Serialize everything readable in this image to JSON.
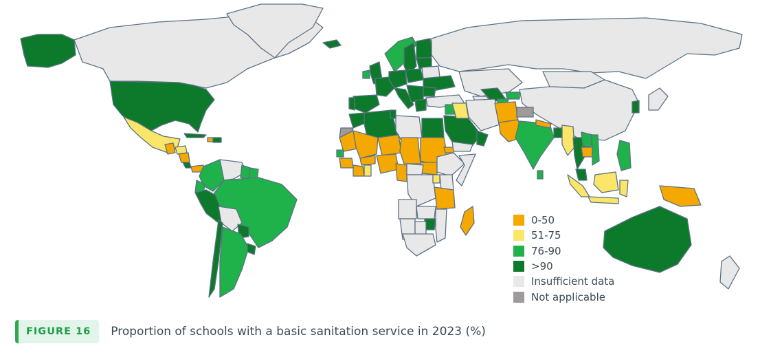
{
  "figure": {
    "label": "FIGURE 16",
    "title": "Proportion of schools with a basic sanitation service in 2023 (%)"
  },
  "legend": [
    {
      "label": "0-50",
      "color": "#f5a800"
    },
    {
      "label": "51-75",
      "color": "#fbe66a"
    },
    {
      "label": "76-90",
      "color": "#1fb14a"
    },
    {
      "label": ">90",
      "color": "#0d7a2b"
    },
    {
      "label": "Insufficient data",
      "color": "#e8e8e8"
    },
    {
      "label": "Not applicable",
      "color": "#a09a9a"
    }
  ],
  "colors": {
    "border": "#5b7184",
    "ocean": "#ffffff",
    "accent": "#2fa84f"
  },
  "regions": [
    {
      "name": "Canada",
      "category": "Insufficient data"
    },
    {
      "name": "Greenland",
      "category": "Insufficient data"
    },
    {
      "name": "Alaska",
      "category": ">90"
    },
    {
      "name": "United States",
      "category": ">90"
    },
    {
      "name": "Mexico",
      "category": "51-75"
    },
    {
      "name": "Guatemala",
      "category": "0-50"
    },
    {
      "name": "Honduras",
      "category": "51-75"
    },
    {
      "name": "Nicaragua",
      "category": "0-50"
    },
    {
      "name": "Costa Rica",
      "category": ">90"
    },
    {
      "name": "Panama",
      "category": "0-50"
    },
    {
      "name": "Cuba",
      "category": ">90"
    },
    {
      "name": "Haiti",
      "category": "0-50"
    },
    {
      "name": "Dominican Republic",
      "category": ">90"
    },
    {
      "name": "Colombia",
      "category": "76-90"
    },
    {
      "name": "Venezuela",
      "category": "Insufficient data"
    },
    {
      "name": "Guyana",
      "category": "76-90"
    },
    {
      "name": "Suriname",
      "category": "76-90"
    },
    {
      "name": "Ecuador",
      "category": "76-90"
    },
    {
      "name": "Peru",
      "category": ">90"
    },
    {
      "name": "Brazil",
      "category": "76-90"
    },
    {
      "name": "Bolivia",
      "category": "Insufficient data"
    },
    {
      "name": "Paraguay",
      "category": ">90"
    },
    {
      "name": "Chile",
      "category": ">90"
    },
    {
      "name": "Argentina",
      "category": "76-90"
    },
    {
      "name": "Uruguay",
      "category": ">90"
    },
    {
      "name": "Iceland",
      "category": ">90"
    },
    {
      "name": "Norway",
      "category": "76-90"
    },
    {
      "name": "Sweden",
      "category": ">90"
    },
    {
      "name": "Finland",
      "category": ">90"
    },
    {
      "name": "United Kingdom",
      "category": ">90"
    },
    {
      "name": "Ireland",
      "category": "76-90"
    },
    {
      "name": "Spain",
      "category": ">90"
    },
    {
      "name": "Portugal",
      "category": ">90"
    },
    {
      "name": "France",
      "category": ">90"
    },
    {
      "name": "Germany",
      "category": ">90"
    },
    {
      "name": "Poland",
      "category": ">90"
    },
    {
      "name": "Baltics",
      "category": ">90"
    },
    {
      "name": "Belarus",
      "category": "Insufficient data"
    },
    {
      "name": "Ukraine",
      "category": ">90"
    },
    {
      "name": "Italy",
      "category": ">90"
    },
    {
      "name": "Balkans",
      "category": ">90"
    },
    {
      "name": "Romania",
      "category": ">90"
    },
    {
      "name": "Greece",
      "category": ">90"
    },
    {
      "name": "Turkey",
      "category": "Insufficient data"
    },
    {
      "name": "Russia",
      "category": "Insufficient data"
    },
    {
      "name": "Kazakhstan",
      "category": "Insufficient data"
    },
    {
      "name": "Uzbekistan",
      "category": ">90"
    },
    {
      "name": "Kyrgyzstan",
      "category": "76-90"
    },
    {
      "name": "Tajikistan",
      "category": "76-90"
    },
    {
      "name": "Turkmenistan",
      "category": "Insufficient data"
    },
    {
      "name": "Mongolia",
      "category": "Insufficient data"
    },
    {
      "name": "China",
      "category": "Insufficient data"
    },
    {
      "name": "Japan",
      "category": "Insufficient data"
    },
    {
      "name": "Korea",
      "category": ">90"
    },
    {
      "name": "Morocco",
      "category": ">90"
    },
    {
      "name": "Western Sahara",
      "category": "Not applicable"
    },
    {
      "name": "Algeria",
      "category": ">90"
    },
    {
      "name": "Tunisia",
      "category": ">90"
    },
    {
      "name": "Libya",
      "category": "Insufficient data"
    },
    {
      "name": "Egypt",
      "category": ">90"
    },
    {
      "name": "Mauritania",
      "category": "0-50"
    },
    {
      "name": "Mali",
      "category": "0-50"
    },
    {
      "name": "Niger",
      "category": "0-50"
    },
    {
      "name": "Chad",
      "category": "0-50"
    },
    {
      "name": "Sudan",
      "category": "0-50"
    },
    {
      "name": "South Sudan",
      "category": "0-50"
    },
    {
      "name": "Ethiopia",
      "category": "Insufficient data"
    },
    {
      "name": "Eritrea",
      "category": "0-50"
    },
    {
      "name": "Somalia",
      "category": "Insufficient data"
    },
    {
      "name": "Senegal",
      "category": "76-90"
    },
    {
      "name": "Guinea",
      "category": "0-50"
    },
    {
      "name": "Burkina Faso",
      "category": "0-50"
    },
    {
      "name": "Cote d'Ivoire",
      "category": "0-50"
    },
    {
      "name": "Ghana",
      "category": "51-75"
    },
    {
      "name": "Nigeria",
      "category": "0-50"
    },
    {
      "name": "Cameroon",
      "category": "0-50"
    },
    {
      "name": "Central African Republic",
      "category": "Insufficient data"
    },
    {
      "name": "DR Congo",
      "category": "Insufficient data"
    },
    {
      "name": "Uganda",
      "category": "51-75"
    },
    {
      "name": "Kenya",
      "category": "Insufficient data"
    },
    {
      "name": "Tanzania",
      "category": "0-50"
    },
    {
      "name": "Angola",
      "category": "Insufficient data"
    },
    {
      "name": "Zambia",
      "category": "Insufficient data"
    },
    {
      "name": "Zimbabwe",
      "category": ">90"
    },
    {
      "name": "Mozambique",
      "category": "Insufficient data"
    },
    {
      "name": "Namibia",
      "category": "Insufficient data"
    },
    {
      "name": "Botswana",
      "category": "Insufficient data"
    },
    {
      "name": "South Africa",
      "category": "Insufficient data"
    },
    {
      "name": "Madagascar",
      "category": "0-50"
    },
    {
      "name": "Saudi Arabia",
      "category": ">90"
    },
    {
      "name": "Yemen",
      "category": "Insufficient data"
    },
    {
      "name": "Oman",
      "category": ">90"
    },
    {
      "name": "Jordan",
      "category": "76-90"
    },
    {
      "name": "Iraq",
      "category": "51-75"
    },
    {
      "name": "Iran",
      "category": "Insufficient data"
    },
    {
      "name": "Afghanistan",
      "category": "0-50"
    },
    {
      "name": "Pakistan",
      "category": "0-50"
    },
    {
      "name": "India",
      "category": "76-90"
    },
    {
      "name": "Nepal",
      "category": "0-50"
    },
    {
      "name": "Kashmir",
      "category": "Not applicable"
    },
    {
      "name": "Bangladesh",
      "category": ">90"
    },
    {
      "name": "Sri Lanka",
      "category": "76-90"
    },
    {
      "name": "Myanmar",
      "category": "51-75"
    },
    {
      "name": "Thailand",
      "category": ">90"
    },
    {
      "name": "Laos",
      "category": "76-90"
    },
    {
      "name": "Cambodia",
      "category": "0-50"
    },
    {
      "name": "Vietnam",
      "category": "76-90"
    },
    {
      "name": "Philippines",
      "category": "76-90"
    },
    {
      "name": "Malaysia",
      "category": ">90"
    },
    {
      "name": "Sumatra",
      "category": "51-75"
    },
    {
      "name": "Java",
      "category": "51-75"
    },
    {
      "name": "Borneo",
      "category": "51-75"
    },
    {
      "name": "Sulawesi",
      "category": "51-75"
    },
    {
      "name": "Papua New Guinea",
      "category": "0-50"
    },
    {
      "name": "Australia",
      "category": ">90"
    },
    {
      "name": "New Zealand",
      "category": "Insufficient data"
    }
  ]
}
